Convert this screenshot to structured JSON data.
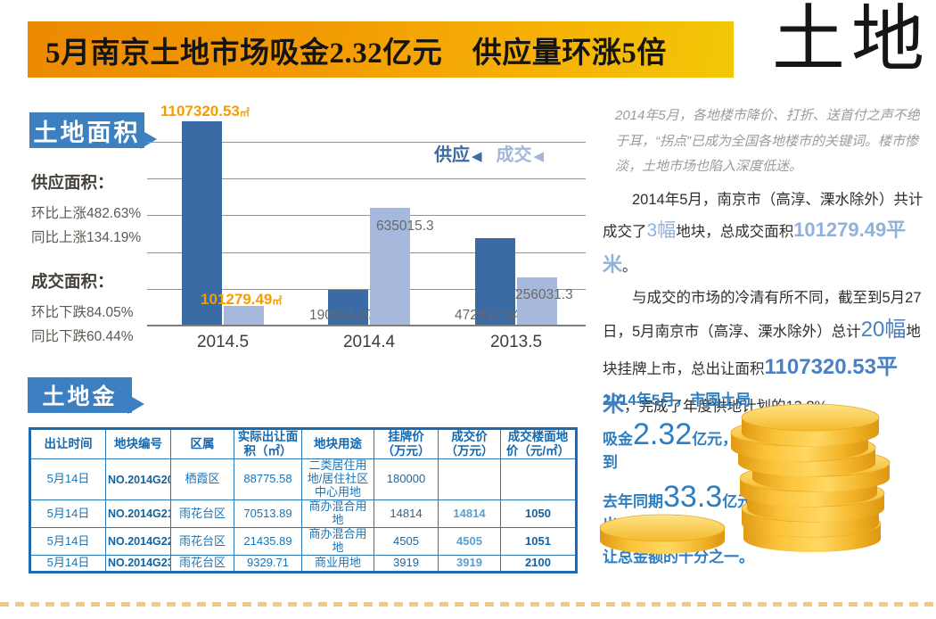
{
  "header": {
    "title": "5月南京土地市场吸金2.32亿元　供应量环涨5倍",
    "brand": "土地"
  },
  "icons": {
    "legend_marker": "◀"
  },
  "colors": {
    "badge_blue": "#3d80c2",
    "bar_supply": "#3b6ba5",
    "bar_deal": "#a6b9dc",
    "orange_label": "#f59d00",
    "table_blue": "#1a74b5",
    "money_blue": "#2e7ec0",
    "coin_gold": "#f5b929",
    "header_orange": "#ee8a02"
  },
  "section_area": {
    "badge": "土地面积",
    "supply_label": "供应面积：",
    "supply_mom": "环比上涨482.63%",
    "supply_yoy": "同比上涨134.19%",
    "deal_label": "成交面积：",
    "deal_mom": "环比下跌84.05%",
    "deal_yoy": "同比下跌60.44%"
  },
  "chart_data": {
    "type": "bar",
    "title": "",
    "xlabel": "",
    "ylabel": "",
    "unit": "㎡",
    "categories": [
      "2014.5",
      "2014.4",
      "2013.5"
    ],
    "series": [
      {
        "name": "供应",
        "color": "#3b6ba5",
        "values": [
          1107320.53,
          190055.07,
          472832.84
        ]
      },
      {
        "name": "成交",
        "color": "#a6b9dc",
        "values": [
          101279.49,
          635015.3,
          256031.3
        ]
      }
    ],
    "label_texts": [
      [
        "1107320.53",
        "190055.07",
        "472832.84"
      ],
      [
        "101279.49",
        "635015.3",
        "256031.3"
      ]
    ],
    "show_unit": [
      [
        true,
        false,
        false
      ],
      [
        true,
        false,
        false
      ]
    ],
    "legend": [
      "供应",
      "成交"
    ],
    "legend_position": "top-right",
    "grid": true,
    "ylim": [
      0,
      1200000
    ],
    "gridline_step": 200000
  },
  "right_column": {
    "intro": "2014年5月，各地楼市降价、打折、送首付之声不绝于耳，“拐点”已成为全国各地楼市的关键词。楼市惨淡，土地市场也陷入深度低迷。",
    "p1": {
      "part1": "2014年5月，南京市（高淳、溧水除外）共计成交了",
      "hl1": "3幅",
      "part2": "地块，总成交面积",
      "hl2": "101279.49平米",
      "part3": "。"
    },
    "p2": {
      "part1": "与成交的市场的冷清有所不同，截至到5月27日，5月南京市（高淳、溧水除外）总计",
      "hl1": "20幅",
      "part2": "地块挂牌上市，总出让面积",
      "hl2": "1107320.53平米",
      "part3": "，完成了年度供地计划的13.8%。"
    }
  },
  "section_money": {
    "badge": "土地金"
  },
  "table": {
    "headers": [
      "出让时间",
      "地块编号",
      "区属",
      "实际出让面积（㎡）",
      "地块用途",
      "挂牌价（万元）",
      "成交价（万元）",
      "成交楼面地价（元/㎡）"
    ],
    "rows": [
      [
        "5月14日",
        "NO.2014G20",
        "栖霞区",
        "88775.58",
        "二类居住用地/居住社区中心用地",
        "180000",
        "",
        ""
      ],
      [
        "5月14日",
        "NO.2014G21",
        "雨花台区",
        "70513.89",
        "商办混合用地",
        "14814",
        "14814",
        "1050"
      ],
      [
        "5月14日",
        "NO.2014G22",
        "雨花台区",
        "21435.89",
        "商办混合用地",
        "4505",
        "4505",
        "1051"
      ],
      [
        "5月14日",
        "NO.2014G23",
        "雨花台区",
        "9329.71",
        "商业用地",
        "3919",
        "3919",
        "2100"
      ]
    ]
  },
  "money": {
    "line1": "2014年5月，市国土局",
    "line2": {
      "pre": "吸金",
      "big": "2.32",
      "post": "亿元，不到"
    },
    "line3": {
      "pre": "去年同期",
      "big": "33.3",
      "post": "亿元出"
    },
    "line4": "让总金额的十分之一。"
  }
}
